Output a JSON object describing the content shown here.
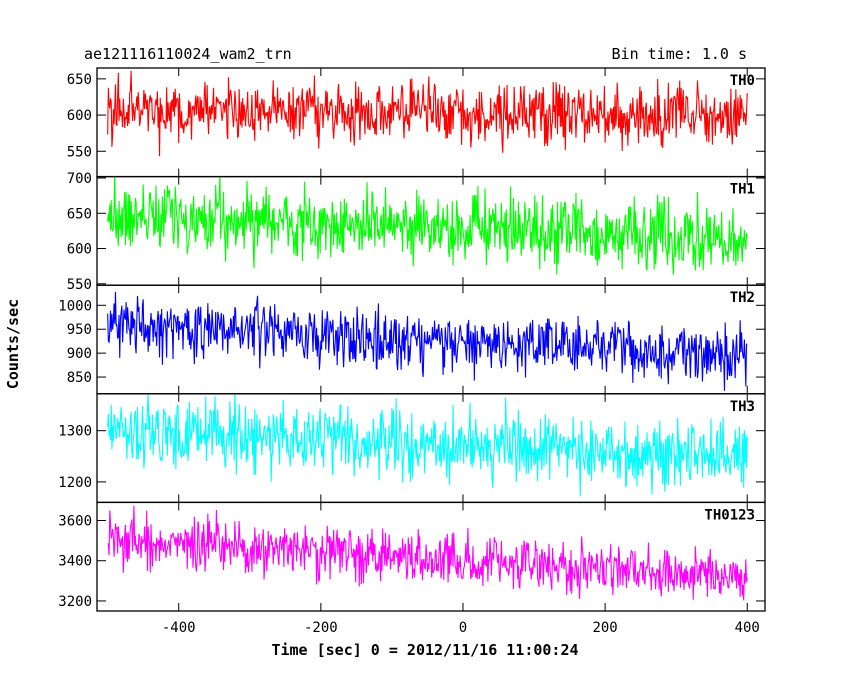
{
  "header": {
    "object_name": "ae121116110024_wam2_trn",
    "bin_time": "Bin time: 1.0 s"
  },
  "chart_data": {
    "type": "line",
    "title": "ae121116110024_wam2_trn",
    "subtitle": "Bin time: 1.0 s",
    "xlabel": "Time [sec] 0 = 2012/11/16 11:00:24",
    "ylabel": "Counts/sec",
    "xlim": [
      -515,
      425
    ],
    "xticks": [
      -400,
      -200,
      0,
      200,
      400
    ],
    "x_range_data": [
      -500,
      400
    ],
    "bin_time_s": 1.0,
    "panels": [
      {
        "name": "TH0",
        "color": "#ff0000",
        "ylim": [
          515,
          665
        ],
        "yticks": [
          550,
          600,
          650
        ],
        "trend": {
          "x": [
            -500,
            400
          ],
          "y": [
            608,
            598
          ]
        },
        "noise_sd": 22
      },
      {
        "name": "TH1",
        "color": "#00ff00",
        "ylim": [
          548,
          702
        ],
        "yticks": [
          550,
          600,
          650,
          700
        ],
        "trend": {
          "x": [
            -500,
            400
          ],
          "y": [
            648,
            610
          ]
        },
        "noise_sd": 24
      },
      {
        "name": "TH2",
        "color": "#0000ff",
        "ylim": [
          815,
          1042
        ],
        "yticks": [
          850,
          900,
          950,
          1000
        ],
        "trend": {
          "x": [
            -500,
            400
          ],
          "y": [
            960,
            895
          ]
        },
        "noise_sd": 30
      },
      {
        "name": "TH3",
        "color": "#00ffff",
        "ylim": [
          1160,
          1372
        ],
        "yticks": [
          1200,
          1300
        ],
        "trend": {
          "x": [
            -500,
            400
          ],
          "y": [
            1300,
            1250
          ]
        },
        "noise_sd": 33
      },
      {
        "name": "TH0123",
        "color": "#ff00ff",
        "ylim": [
          3150,
          3690
        ],
        "yticks": [
          3200,
          3400,
          3600
        ],
        "trend": {
          "x": [
            -500,
            400
          ],
          "y": [
            3500,
            3320
          ]
        },
        "noise_sd": 65
      }
    ]
  }
}
